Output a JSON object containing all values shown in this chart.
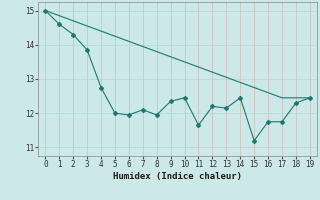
{
  "title": "",
  "xlabel": "Humidex (Indice chaleur)",
  "ylabel": "",
  "background_color": "#cce8e8",
  "grid_color": "#b2d8d8",
  "line_color": "#1a7a6e",
  "xlim": [
    -0.5,
    19.5
  ],
  "ylim": [
    10.75,
    15.25
  ],
  "yticks": [
    11,
    12,
    13,
    14,
    15
  ],
  "xticks": [
    0,
    1,
    2,
    3,
    4,
    5,
    6,
    7,
    8,
    9,
    10,
    11,
    12,
    13,
    14,
    15,
    16,
    17,
    18,
    19
  ],
  "series1_x": [
    0,
    1,
    2,
    3,
    4,
    5,
    6,
    7,
    8,
    9,
    10,
    11,
    12,
    13,
    14,
    15,
    16,
    17,
    18,
    19
  ],
  "series1_y": [
    15.0,
    14.6,
    14.3,
    13.85,
    12.75,
    12.0,
    11.95,
    12.1,
    11.95,
    12.35,
    12.45,
    11.65,
    12.2,
    12.15,
    12.45,
    11.2,
    11.75,
    11.75,
    12.3,
    12.45
  ],
  "series2_x": [
    0,
    1,
    2,
    3,
    4,
    5,
    6,
    7,
    8,
    9,
    10,
    11,
    12,
    13,
    14,
    15,
    16,
    17,
    18,
    19
  ],
  "series2_y": [
    15.0,
    14.85,
    14.7,
    14.55,
    14.4,
    14.25,
    14.1,
    13.95,
    13.8,
    13.65,
    13.5,
    13.35,
    13.2,
    13.05,
    12.9,
    12.75,
    12.6,
    12.45,
    12.45,
    12.45
  ]
}
